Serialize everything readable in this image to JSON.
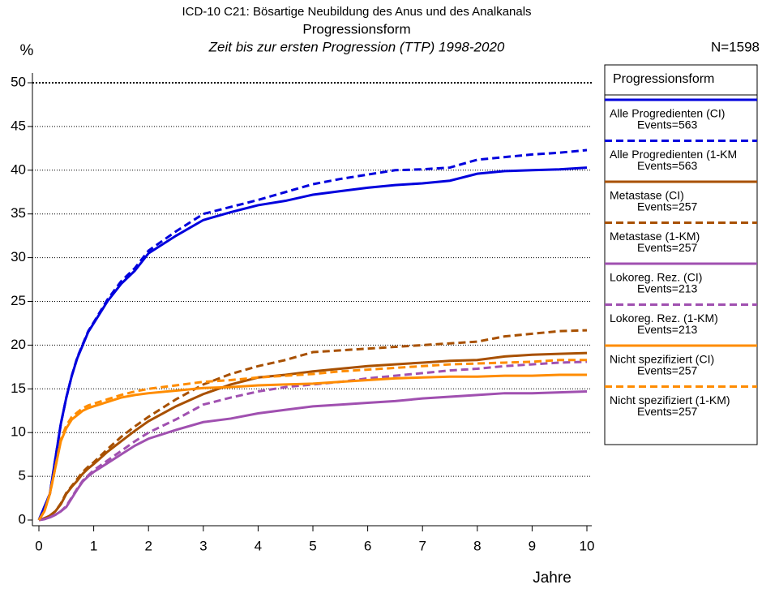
{
  "chart_data": {
    "type": "line",
    "title": "ICD-10 C21: Bösartige Neubildung des Anus und des Analkanals",
    "subtitle": "Progressionsform",
    "subtitle2": "Zeit bis zur ersten Progression (TTP) 1998-2020",
    "y_label": "%",
    "x_label": "Jahre",
    "n_label": "N=1598",
    "legend_title": "Progressionsform",
    "grid": true,
    "xlim": [
      0,
      10
    ],
    "xticks": [
      0,
      1,
      2,
      3,
      4,
      5,
      6,
      7,
      8,
      9,
      10
    ],
    "ylim": [
      0,
      50
    ],
    "yticks": [
      0,
      5,
      10,
      15,
      20,
      25,
      30,
      35,
      40,
      45,
      50
    ],
    "x": [
      0,
      0.1,
      0.2,
      0.3,
      0.4,
      0.5,
      0.6,
      0.7,
      0.8,
      0.9,
      1,
      1.25,
      1.5,
      1.75,
      2,
      2.5,
      3,
      3.5,
      4,
      4.5,
      5,
      5.5,
      6,
      6.5,
      7,
      7.5,
      8,
      8.5,
      9,
      9.5,
      10
    ],
    "series": [
      {
        "name": "Alle Progredienten (CI)",
        "events": "Events=563",
        "color": "#0000dd",
        "dash": false,
        "values": [
          0,
          1.5,
          3,
          7,
          11,
          14,
          16.5,
          18.5,
          20,
          21.5,
          22.5,
          25,
          27,
          28.5,
          30.5,
          32.5,
          34.3,
          35.2,
          36,
          36.5,
          37.2,
          37.6,
          38,
          38.3,
          38.5,
          38.8,
          39.6,
          39.9,
          40,
          40.1,
          40.3
        ]
      },
      {
        "name": "Alle Progredienten (1-KM",
        "events": "Events=563",
        "color": "#0000dd",
        "dash": true,
        "values": [
          0,
          1.5,
          3,
          7,
          11,
          14,
          16.5,
          18.6,
          20.1,
          21.6,
          22.6,
          25.2,
          27.3,
          28.8,
          30.8,
          33,
          35,
          35.8,
          36.6,
          37.5,
          38.4,
          39,
          39.5,
          40,
          40.1,
          40.3,
          41.2,
          41.5,
          41.8,
          42,
          42.3
        ]
      },
      {
        "name": "Metastase (CI)",
        "events": "Events=257",
        "color": "#a85000",
        "dash": false,
        "values": [
          0,
          0.2,
          0.5,
          1,
          1.8,
          3,
          3.8,
          4.5,
          5.3,
          5.9,
          6.4,
          7.8,
          9,
          10.2,
          11.3,
          13,
          14.4,
          15.5,
          16.3,
          16.6,
          17,
          17.3,
          17.6,
          17.8,
          18,
          18.2,
          18.3,
          18.7,
          18.9,
          19,
          19.1
        ]
      },
      {
        "name": "Metastase (1-KM)",
        "events": "Events=257",
        "color": "#a85000",
        "dash": true,
        "values": [
          0,
          0.2,
          0.5,
          1,
          1.9,
          3.1,
          3.9,
          4.7,
          5.5,
          6.1,
          6.6,
          8.1,
          9.5,
          10.7,
          11.8,
          13.8,
          15.5,
          16.7,
          17.6,
          18.3,
          19.2,
          19.4,
          19.6,
          19.8,
          20,
          20.2,
          20.4,
          21,
          21.3,
          21.6,
          21.7
        ]
      },
      {
        "name": "Lokoreg. Rez. (CI)",
        "events": "Events=213",
        "color": "#a050b0",
        "dash": false,
        "values": [
          0,
          0.1,
          0.3,
          0.6,
          1,
          1.5,
          2.5,
          3.5,
          4.4,
          5,
          5.5,
          6.5,
          7.5,
          8.5,
          9.3,
          10.3,
          11.2,
          11.6,
          12.2,
          12.6,
          13,
          13.2,
          13.4,
          13.6,
          13.9,
          14.1,
          14.3,
          14.5,
          14.5,
          14.6,
          14.7
        ]
      },
      {
        "name": "Lokoreg. Rez. (1-KM)",
        "events": "Events=213",
        "color": "#a050b0",
        "dash": true,
        "values": [
          0,
          0.1,
          0.3,
          0.6,
          1,
          1.6,
          2.6,
          3.6,
          4.5,
          5.1,
          5.7,
          6.8,
          7.9,
          9,
          10,
          11.5,
          13.2,
          14,
          14.7,
          15.2,
          15.5,
          15.8,
          16.2,
          16.5,
          16.8,
          17.1,
          17.3,
          17.6,
          17.8,
          18,
          18.1
        ]
      },
      {
        "name": "Nicht spezifiziert (CI)",
        "events": "Events=257",
        "color": "#ff8c00",
        "dash": false,
        "values": [
          0,
          1,
          3,
          6,
          9,
          10.5,
          11.5,
          12,
          12.5,
          12.8,
          13,
          13.5,
          14,
          14.3,
          14.5,
          14.8,
          15.1,
          15.2,
          15.4,
          15.5,
          15.6,
          15.8,
          16,
          16.2,
          16.3,
          16.4,
          16.4,
          16.5,
          16.5,
          16.6,
          16.6
        ]
      },
      {
        "name": "Nicht spezifiziert (1-KM)",
        "events": "Events=257",
        "color": "#ff8c00",
        "dash": true,
        "values": [
          0,
          1,
          3,
          6,
          9.2,
          10.8,
          11.8,
          12.3,
          12.8,
          13.1,
          13.3,
          13.8,
          14.3,
          14.7,
          15,
          15.4,
          15.8,
          16,
          16.3,
          16.5,
          16.7,
          17,
          17.2,
          17.4,
          17.6,
          17.8,
          17.9,
          18,
          18.1,
          18.3,
          18.3
        ]
      }
    ]
  }
}
